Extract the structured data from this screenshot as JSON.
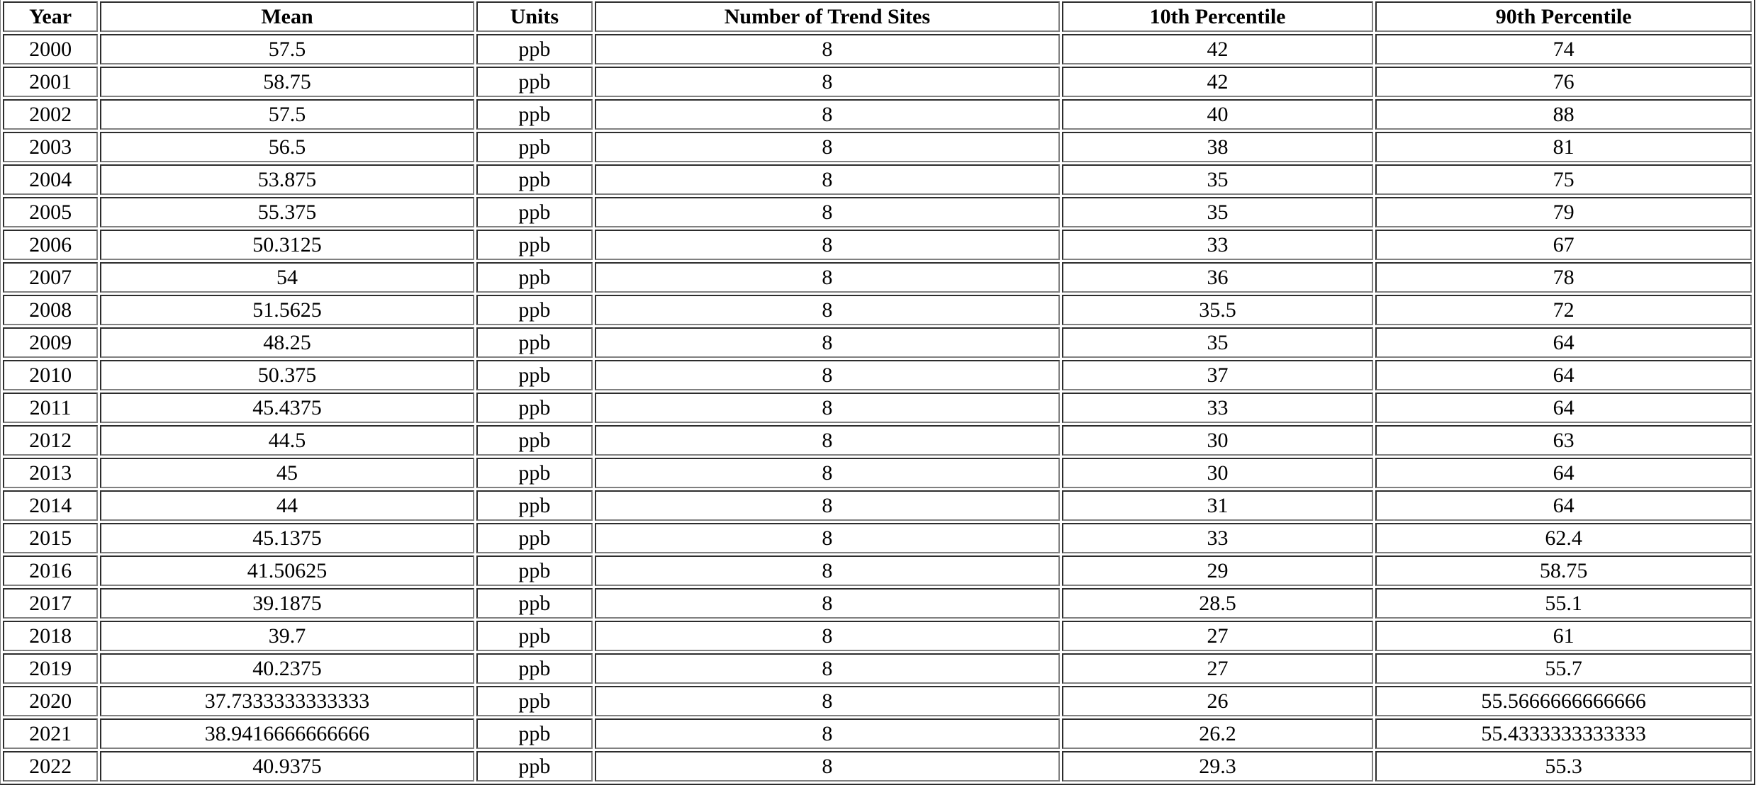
{
  "table": {
    "headers": [
      "Year",
      "Mean",
      "Units",
      "Number of Trend Sites",
      "10th Percentile",
      "90th Percentile"
    ],
    "rows": [
      [
        "2000",
        "57.5",
        "ppb",
        "8",
        "42",
        "74"
      ],
      [
        "2001",
        "58.75",
        "ppb",
        "8",
        "42",
        "76"
      ],
      [
        "2002",
        "57.5",
        "ppb",
        "8",
        "40",
        "88"
      ],
      [
        "2003",
        "56.5",
        "ppb",
        "8",
        "38",
        "81"
      ],
      [
        "2004",
        "53.875",
        "ppb",
        "8",
        "35",
        "75"
      ],
      [
        "2005",
        "55.375",
        "ppb",
        "8",
        "35",
        "79"
      ],
      [
        "2006",
        "50.3125",
        "ppb",
        "8",
        "33",
        "67"
      ],
      [
        "2007",
        "54",
        "ppb",
        "8",
        "36",
        "78"
      ],
      [
        "2008",
        "51.5625",
        "ppb",
        "8",
        "35.5",
        "72"
      ],
      [
        "2009",
        "48.25",
        "ppb",
        "8",
        "35",
        "64"
      ],
      [
        "2010",
        "50.375",
        "ppb",
        "8",
        "37",
        "64"
      ],
      [
        "2011",
        "45.4375",
        "ppb",
        "8",
        "33",
        "64"
      ],
      [
        "2012",
        "44.5",
        "ppb",
        "8",
        "30",
        "63"
      ],
      [
        "2013",
        "45",
        "ppb",
        "8",
        "30",
        "64"
      ],
      [
        "2014",
        "44",
        "ppb",
        "8",
        "31",
        "64"
      ],
      [
        "2015",
        "45.1375",
        "ppb",
        "8",
        "33",
        "62.4"
      ],
      [
        "2016",
        "41.50625",
        "ppb",
        "8",
        "29",
        "58.75"
      ],
      [
        "2017",
        "39.1875",
        "ppb",
        "8",
        "28.5",
        "55.1"
      ],
      [
        "2018",
        "39.7",
        "ppb",
        "8",
        "27",
        "61"
      ],
      [
        "2019",
        "40.2375",
        "ppb",
        "8",
        "27",
        "55.7"
      ],
      [
        "2020",
        "37.7333333333333",
        "ppb",
        "8",
        "26",
        "55.5666666666666"
      ],
      [
        "2021",
        "38.9416666666666",
        "ppb",
        "8",
        "26.2",
        "55.4333333333333"
      ],
      [
        "2022",
        "40.9375",
        "ppb",
        "8",
        "29.3",
        "55.3"
      ]
    ]
  }
}
